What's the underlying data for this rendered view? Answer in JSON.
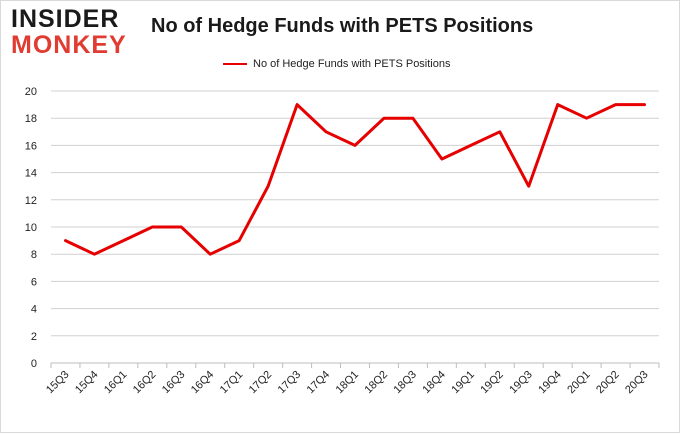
{
  "logo": {
    "line1": "INSIDER",
    "line2": "MONKEY"
  },
  "chart_data": {
    "type": "line",
    "title": "No of Hedge Funds with PETS Positions",
    "xlabel": "",
    "ylabel": "",
    "categories": [
      "15Q3",
      "15Q4",
      "16Q1",
      "16Q2",
      "16Q3",
      "16Q4",
      "17Q1",
      "17Q2",
      "17Q3",
      "17Q4",
      "18Q1",
      "18Q2",
      "18Q3",
      "18Q4",
      "19Q1",
      "19Q2",
      "19Q3",
      "19Q4",
      "20Q1",
      "20Q2",
      "20Q3"
    ],
    "series": [
      {
        "name": "No of Hedge Funds with PETS Positions",
        "color": "#e60000",
        "values": [
          9,
          8,
          9,
          10,
          10,
          8,
          9,
          13,
          19,
          17,
          16,
          18,
          18,
          15,
          16,
          17,
          13,
          19,
          18,
          19,
          19
        ]
      }
    ],
    "ylim": [
      0,
      20
    ],
    "yticks": [
      0,
      2,
      4,
      6,
      8,
      10,
      12,
      14,
      16,
      18,
      20
    ],
    "grid": true,
    "legend": "top-center"
  }
}
